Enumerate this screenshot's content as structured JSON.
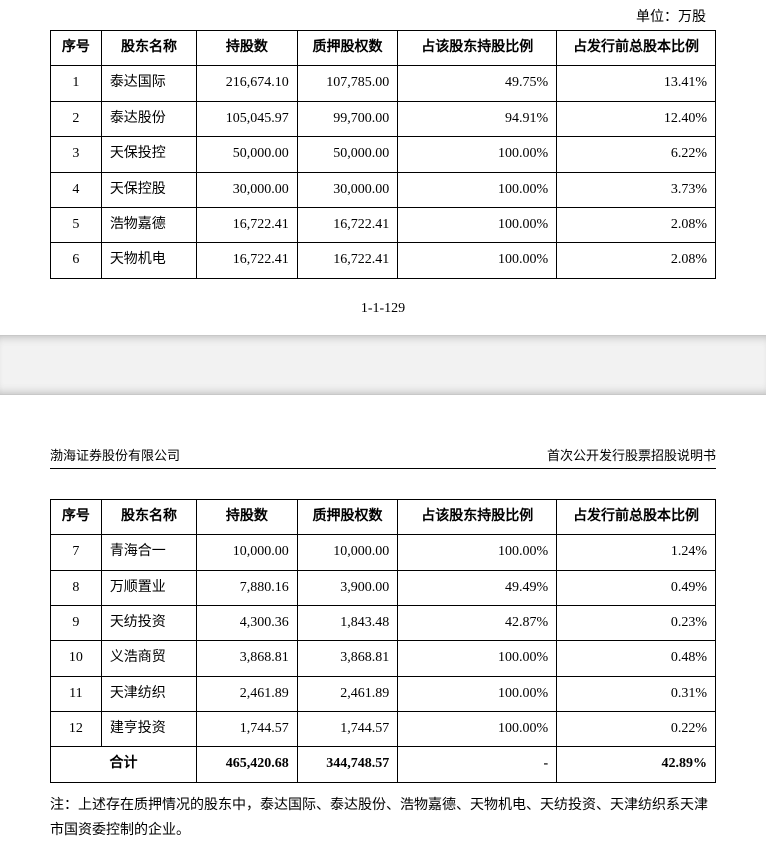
{
  "unit_label": "单位：万股",
  "columns": {
    "idx": "序号",
    "name": "股东名称",
    "shares": "持股数",
    "pledged": "质押股权数",
    "pct_holder": "占该股东持股比例",
    "pct_total": "占发行前总股本比例"
  },
  "table1": {
    "rows": [
      {
        "idx": "1",
        "name": "泰达国际",
        "shares": "216,674.10",
        "pledged": "107,785.00",
        "pct_holder": "49.75%",
        "pct_total": "13.41%"
      },
      {
        "idx": "2",
        "name": "泰达股份",
        "shares": "105,045.97",
        "pledged": "99,700.00",
        "pct_holder": "94.91%",
        "pct_total": "12.40%"
      },
      {
        "idx": "3",
        "name": "天保投控",
        "shares": "50,000.00",
        "pledged": "50,000.00",
        "pct_holder": "100.00%",
        "pct_total": "6.22%"
      },
      {
        "idx": "4",
        "name": "天保控股",
        "shares": "30,000.00",
        "pledged": "30,000.00",
        "pct_holder": "100.00%",
        "pct_total": "3.73%"
      },
      {
        "idx": "5",
        "name": "浩物嘉德",
        "shares": "16,722.41",
        "pledged": "16,722.41",
        "pct_holder": "100.00%",
        "pct_total": "2.08%"
      },
      {
        "idx": "6",
        "name": "天物机电",
        "shares": "16,722.41",
        "pledged": "16,722.41",
        "pct_holder": "100.00%",
        "pct_total": "2.08%"
      }
    ]
  },
  "page_number": "1-1-129",
  "page2_header": {
    "left": "渤海证券股份有限公司",
    "right": "首次公开发行股票招股说明书"
  },
  "table2": {
    "rows": [
      {
        "idx": "7",
        "name": "青海合一",
        "shares": "10,000.00",
        "pledged": "10,000.00",
        "pct_holder": "100.00%",
        "pct_total": "1.24%"
      },
      {
        "idx": "8",
        "name": "万顺置业",
        "shares": "7,880.16",
        "pledged": "3,900.00",
        "pct_holder": "49.49%",
        "pct_total": "0.49%"
      },
      {
        "idx": "9",
        "name": "天纺投资",
        "shares": "4,300.36",
        "pledged": "1,843.48",
        "pct_holder": "42.87%",
        "pct_total": "0.23%"
      },
      {
        "idx": "10",
        "name": "义浩商贸",
        "shares": "3,868.81",
        "pledged": "3,868.81",
        "pct_holder": "100.00%",
        "pct_total": "0.48%"
      },
      {
        "idx": "11",
        "name": "天津纺织",
        "shares": "2,461.89",
        "pledged": "2,461.89",
        "pct_holder": "100.00%",
        "pct_total": "0.31%"
      },
      {
        "idx": "12",
        "name": "建亨投资",
        "shares": "1,744.57",
        "pledged": "1,744.57",
        "pct_holder": "100.00%",
        "pct_total": "0.22%"
      }
    ],
    "total": {
      "label": "合计",
      "shares": "465,420.68",
      "pledged": "344,748.57",
      "pct_holder": "-",
      "pct_total": "42.89%"
    }
  },
  "footnote": "注：上述存在质押情况的股东中，泰达国际、泰达股份、浩物嘉德、天物机电、天纺投资、天津纺织系天津市国资委控制的企业。"
}
